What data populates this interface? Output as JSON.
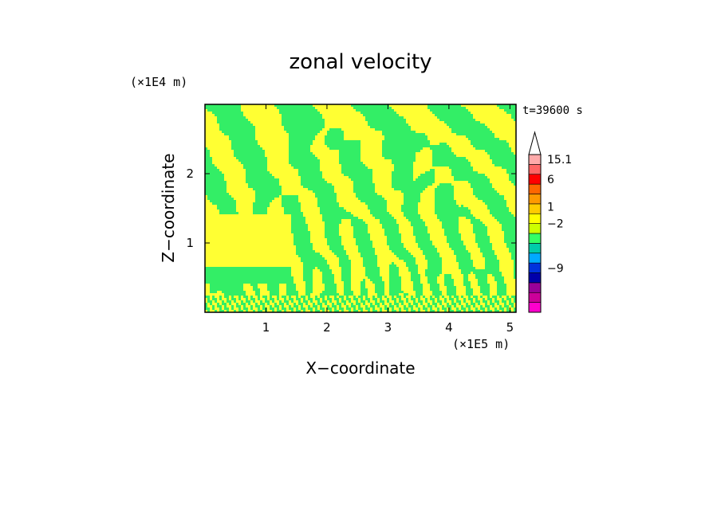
{
  "chart_data": {
    "type": "heatmap",
    "title": "zonal velocity",
    "xlabel": "X−coordinate",
    "ylabel": "Z−coordinate",
    "x_unit": "(×1E5 m)",
    "y_unit": "(×1E4 m)",
    "time_label": "t=39600 s",
    "xlim": [
      0,
      5.1
    ],
    "ylim": [
      0,
      3.0
    ],
    "x_ticks": [
      {
        "value": 1,
        "label": "1"
      },
      {
        "value": 2,
        "label": "2"
      },
      {
        "value": 3,
        "label": "3"
      },
      {
        "value": 4,
        "label": "4"
      },
      {
        "value": 5,
        "label": "5"
      }
    ],
    "y_ticks": [
      {
        "value": 1,
        "label": "1"
      },
      {
        "value": 2,
        "label": "2"
      }
    ],
    "colorbar": {
      "levels": [
        {
          "color": "#ff00cc"
        },
        {
          "color": "#cc0099"
        },
        {
          "color": "#990099"
        },
        {
          "color": "#0000aa"
        },
        {
          "color": "#0033dd"
        },
        {
          "color": "#00aaff"
        },
        {
          "color": "#00ccaa"
        },
        {
          "color": "#33ff66"
        },
        {
          "color": "#ccff00"
        },
        {
          "color": "#ffff00"
        },
        {
          "color": "#ffcc00"
        },
        {
          "color": "#ff9900"
        },
        {
          "color": "#ff6600"
        },
        {
          "color": "#ff0000"
        },
        {
          "color": "#ff6666"
        },
        {
          "color": "#ffaaaa"
        }
      ],
      "labels": [
        {
          "text": "15.1",
          "level": 15.5
        },
        {
          "text": "6",
          "level": 13.5
        },
        {
          "text": "1",
          "level": 10.7
        },
        {
          "text": "−2",
          "level": 9.0
        },
        {
          "text": "−9",
          "level": 4.5
        }
      ],
      "overflow_arrow_color": "#ffffff"
    },
    "field_colors": {
      "positive": "#ffff33",
      "negative": "#33ee66",
      "small": "#ccff00"
    }
  }
}
